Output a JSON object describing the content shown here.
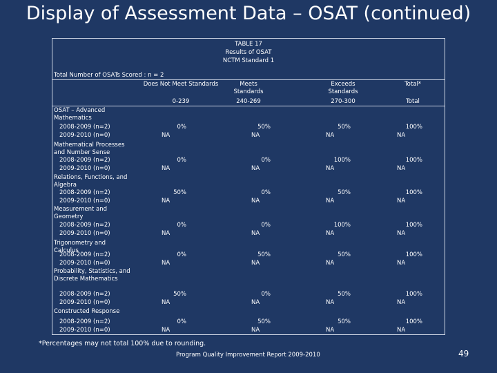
{
  "title": "Display of Assessment Data – OSAT (continued)",
  "table": {
    "caption": [
      "TABLE 17",
      "Results of OSAT",
      "NCTM Standard 1"
    ],
    "total_note": "Total Number of OSATs Scored : n = 2",
    "headers": [
      "Does Not Meet Standards",
      "Meets Standards",
      "Exceeds Standards",
      "Total*"
    ],
    "subheaders": [
      "0-239",
      "240-269",
      "270-300",
      "Total"
    ],
    "sections": [
      {
        "label": "OSAT – Advanced Mathematics",
        "rows": [
          [
            "2008-2009 (n=2)",
            "0%",
            "50%",
            "50%",
            "100%"
          ],
          [
            "2009-2010 (n=0)",
            "NA",
            "NA",
            "NA",
            "NA"
          ]
        ]
      },
      {
        "label": "Mathematical Processes and Number Sense",
        "rows": [
          [
            "2008-2009 (n=2)",
            "0%",
            "0%",
            "100%",
            "100%"
          ],
          [
            "2009-2010 (n=0)",
            "NA",
            "NA",
            "NA",
            "NA"
          ]
        ]
      },
      {
        "label": "Relations, Functions, and Algebra",
        "rows": [
          [
            "2008-2009 (n=2)",
            "50%",
            "0%",
            "50%",
            "100%"
          ],
          [
            "2009-2010 (n=0)",
            "NA",
            "NA",
            "NA",
            "NA"
          ]
        ]
      },
      {
        "label": "Measurement and Geometry",
        "rows": [
          [
            "2008-2009 (n=2)",
            "0%",
            "0%",
            "100%",
            "100%"
          ],
          [
            "2009-2010 (n=0)",
            "NA",
            "NA",
            "NA",
            "NA"
          ]
        ]
      },
      {
        "label": "Trigonometry and Calculus",
        "rows": [
          [
            "2008-2009 (n=2)",
            "0%",
            "50%",
            "50%",
            "100%"
          ],
          [
            "2009-2010 (n=0)",
            "NA",
            "NA",
            "NA",
            "NA"
          ]
        ]
      },
      {
        "label": "Probability, Statistics, and Discrete Mathematics",
        "rows": [
          [
            "2008-2009 (n=2)",
            "50%",
            "0%",
            "50%",
            "100%"
          ],
          [
            "2009-2010 (n=0)",
            "NA",
            "NA",
            "NA",
            "NA"
          ]
        ]
      },
      {
        "label": "Constructed Response",
        "rows": [
          [
            "2008-2009 (n=2)",
            "0%",
            "50%",
            "50%",
            "100%"
          ],
          [
            "2009-2010 (n=0)",
            "NA",
            "NA",
            "NA",
            "NA"
          ]
        ]
      }
    ],
    "footnote": "*Percentages may not total 100% due to rounding."
  },
  "footer": "Program Quality Improvement Report 2009-2010",
  "page_number": "49"
}
